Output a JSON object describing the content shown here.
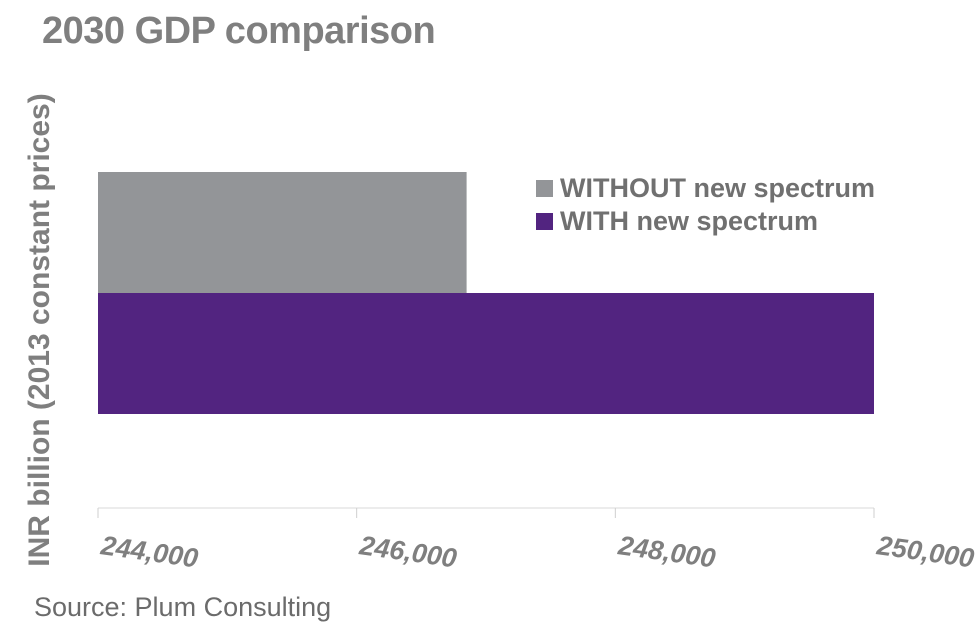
{
  "title": "2030 GDP comparison",
  "source": "Source: Plum Consulting",
  "chart_data": {
    "type": "bar",
    "orientation": "horizontal",
    "title": "2030 GDP comparison",
    "xlabel": "",
    "ylabel": "INR billion (2013 constant prices)",
    "xlim": [
      244000,
      250000
    ],
    "xticks": [
      244000,
      246000,
      248000,
      250000
    ],
    "xtick_labels": [
      "244,000",
      "246,000",
      "248,000",
      "250,000"
    ],
    "grid": false,
    "legend_position": "top-right",
    "series": [
      {
        "name": "WITHOUT new spectrum",
        "value": 246850,
        "color": "#939598"
      },
      {
        "name": "WITH new spectrum",
        "value": 250000,
        "color": "#522480"
      }
    ]
  }
}
